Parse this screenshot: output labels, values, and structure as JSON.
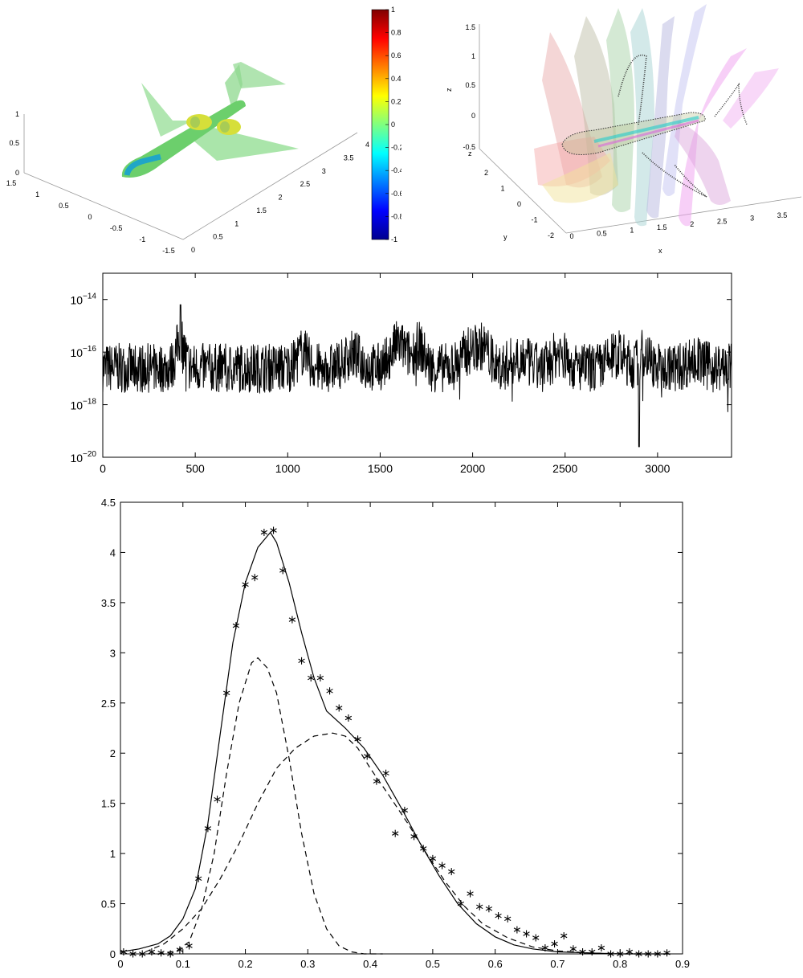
{
  "panel_a": {
    "z_ticks": [
      "0",
      "0.5",
      "1"
    ],
    "x_ticks": [
      "1.5",
      "1",
      "0.5",
      "0",
      "-0.5",
      "-1",
      "-1.5"
    ],
    "y_ticks": [
      "0",
      "0.5",
      "1",
      "1.5",
      "2",
      "2.5",
      "3",
      "3.5",
      "4"
    ],
    "colorbar": {
      "min": -1,
      "max": 1,
      "ticks": [
        "1",
        "0.8",
        "0.6",
        "0.4",
        "0.2",
        "0",
        "-0.2",
        "-0.4",
        "-0.6",
        "-0.8",
        "-1"
      ]
    },
    "colors": {
      "wing": "#7fd67f",
      "fuselage": "#6ccf6c",
      "engine": "#d6df3a"
    }
  },
  "panel_b": {
    "z_ticks": [
      "-0.5",
      "0",
      "0.5",
      "1",
      "1.5"
    ],
    "y_ticks": [
      "-2",
      "-1",
      "0",
      "1",
      "2"
    ],
    "x_ticks": [
      "0",
      "0.5",
      "1",
      "1.5",
      "2",
      "2.5",
      "3",
      "3.5"
    ],
    "x_label": "x",
    "y_label": "y",
    "z_label_top": "z",
    "z_label_side": "z"
  },
  "chart_data": [
    {
      "type": "line",
      "xlim": [
        0,
        3400
      ],
      "y_scale": "log",
      "ylim": [
        1e-20,
        1e-13
      ],
      "x_ticks": [
        "0",
        "500",
        "1000",
        "1500",
        "2000",
        "2500",
        "3000"
      ],
      "y_ticks": [
        {
          "base": "10",
          "exp": "−14"
        },
        {
          "base": "10",
          "exp": "−16"
        },
        {
          "base": "10",
          "exp": "−18"
        },
        {
          "base": "10",
          "exp": "−20"
        }
      ],
      "series_color": "#000000"
    },
    {
      "type": "line",
      "xlim": [
        0,
        0.9
      ],
      "ylim": [
        0,
        4.5
      ],
      "x_ticks": [
        "0",
        "0.1",
        "0.2",
        "0.3",
        "0.4",
        "0.5",
        "0.6",
        "0.7",
        "0.8",
        "0.9"
      ],
      "y_ticks": [
        "0",
        "0.5",
        "1",
        "1.5",
        "2",
        "2.5",
        "3",
        "3.5",
        "4",
        "4.5"
      ],
      "series": [
        {
          "style": "solid",
          "x": [
            0,
            0.03,
            0.06,
            0.08,
            0.1,
            0.12,
            0.14,
            0.16,
            0.18,
            0.2,
            0.22,
            0.24,
            0.25,
            0.27,
            0.29,
            0.31,
            0.33,
            0.36,
            0.39,
            0.42,
            0.45,
            0.48,
            0.51,
            0.54,
            0.57,
            0.6,
            0.63,
            0.66,
            0.7,
            0.75,
            0.8,
            0.88
          ],
          "y": [
            0.02,
            0.05,
            0.1,
            0.18,
            0.35,
            0.65,
            1.3,
            2.2,
            3.1,
            3.7,
            4.05,
            4.2,
            4.1,
            3.7,
            3.2,
            2.75,
            2.42,
            2.25,
            2.05,
            1.78,
            1.45,
            1.1,
            0.78,
            0.5,
            0.3,
            0.17,
            0.09,
            0.05,
            0.02,
            0.01,
            0.0,
            0.0
          ]
        },
        {
          "style": "dashed",
          "x": [
            0.06,
            0.09,
            0.11,
            0.13,
            0.15,
            0.17,
            0.19,
            0.21,
            0.22,
            0.235,
            0.25,
            0.27,
            0.29,
            0.31,
            0.33,
            0.35,
            0.37,
            0.39,
            0.42
          ],
          "y": [
            0.0,
            0.03,
            0.12,
            0.45,
            1.0,
            1.8,
            2.5,
            2.9,
            2.95,
            2.85,
            2.6,
            1.95,
            1.2,
            0.6,
            0.25,
            0.08,
            0.02,
            0.0,
            0.0
          ]
        },
        {
          "style": "dashed",
          "x": [
            0.04,
            0.07,
            0.1,
            0.13,
            0.16,
            0.19,
            0.22,
            0.25,
            0.28,
            0.31,
            0.34,
            0.36,
            0.38,
            0.4,
            0.43,
            0.46,
            0.49,
            0.52,
            0.55,
            0.58,
            0.62,
            0.66,
            0.7,
            0.75,
            0.8,
            0.88
          ],
          "y": [
            0.02,
            0.1,
            0.25,
            0.45,
            0.75,
            1.1,
            1.5,
            1.85,
            2.05,
            2.17,
            2.2,
            2.17,
            2.05,
            1.85,
            1.58,
            1.3,
            1.0,
            0.72,
            0.48,
            0.3,
            0.16,
            0.07,
            0.03,
            0.01,
            0.0,
            0.0
          ]
        },
        {
          "style": "markers-asterisk",
          "x": [
            0.005,
            0.02,
            0.035,
            0.05,
            0.065,
            0.08,
            0.095,
            0.11,
            0.125,
            0.14,
            0.155,
            0.17,
            0.185,
            0.2,
            0.215,
            0.23,
            0.245,
            0.26,
            0.275,
            0.29,
            0.305,
            0.32,
            0.335,
            0.35,
            0.365,
            0.38,
            0.395,
            0.41,
            0.425,
            0.44,
            0.455,
            0.47,
            0.485,
            0.5,
            0.515,
            0.53,
            0.545,
            0.56,
            0.575,
            0.59,
            0.605,
            0.62,
            0.635,
            0.65,
            0.665,
            0.68,
            0.695,
            0.71,
            0.725,
            0.74,
            0.755,
            0.77,
            0.785,
            0.8,
            0.815,
            0.83,
            0.845,
            0.86,
            0.875
          ],
          "y": [
            0.02,
            0.0,
            0.0,
            0.02,
            0.01,
            0.0,
            0.04,
            0.08,
            0.75,
            1.25,
            1.54,
            2.6,
            3.27,
            3.68,
            3.75,
            4.2,
            4.22,
            3.82,
            3.33,
            2.92,
            2.75,
            2.75,
            2.62,
            2.45,
            2.35,
            2.14,
            1.97,
            1.72,
            1.8,
            1.2,
            1.43,
            1.17,
            1.05,
            0.95,
            0.88,
            0.82,
            0.5,
            0.6,
            0.47,
            0.45,
            0.38,
            0.35,
            0.24,
            0.2,
            0.16,
            0.06,
            0.1,
            0.18,
            0.05,
            0.02,
            0.02,
            0.06,
            0.0,
            0.0,
            0.02,
            0.0,
            0.0,
            0.0,
            0.01
          ]
        }
      ]
    }
  ]
}
